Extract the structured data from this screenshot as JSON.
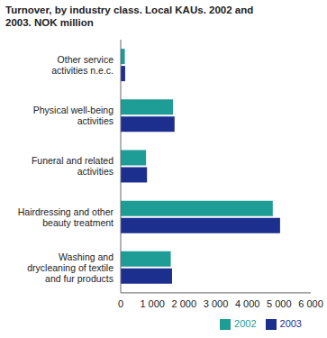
{
  "chart_data": {
    "type": "bar",
    "orientation": "horizontal",
    "title": "Turnover, by industry class. Local KAUs. 2002 and 2003. NOK million",
    "categories": [
      "Other service activities n.e.c.",
      "Physical well-being activities",
      "Funeral and related activities",
      "Hairdressing and other beauty treatment",
      "Washing and drycleaning of textile and fur products"
    ],
    "series": [
      {
        "name": "2002",
        "color": "#1e9c96",
        "values": [
          130,
          1650,
          800,
          4800,
          1580
        ]
      },
      {
        "name": "2003",
        "color": "#1c2f8e",
        "values": [
          140,
          1700,
          830,
          5030,
          1620
        ]
      }
    ],
    "xlim": [
      0,
      6000
    ],
    "xticks": [
      0,
      {
        "value": 1000,
        "label": "1 000"
      },
      {
        "value": 2000,
        "label": "2 000"
      },
      {
        "value": 3000,
        "label": "3 000"
      },
      {
        "value": 4000,
        "label": "4 000"
      },
      {
        "value": 5000,
        "label": "5 000"
      },
      {
        "value": 6000,
        "label": "6 000"
      }
    ],
    "grid": false,
    "legend": "bottom right"
  }
}
